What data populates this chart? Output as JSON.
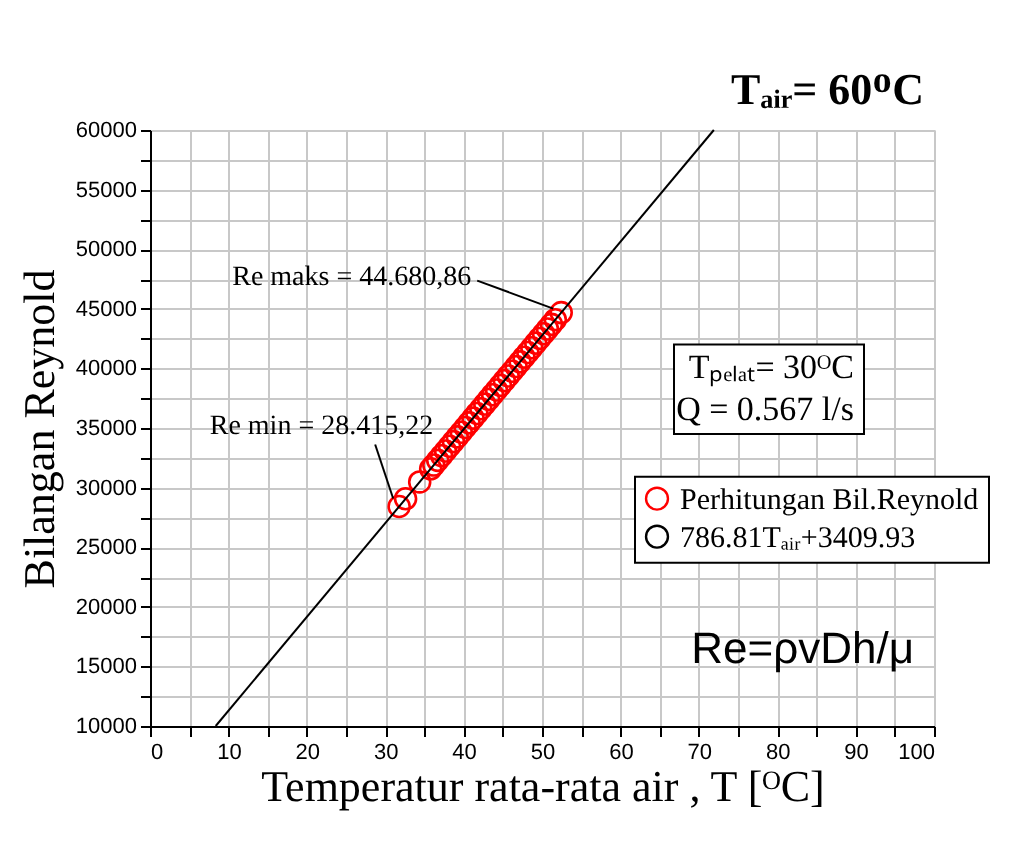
{
  "chart_data": {
    "type": "scatter",
    "xlabel": "Temperatur rata-rata air , T [ᴼC]",
    "ylabel": "Bilangan Reynold",
    "xlim": [
      0,
      100
    ],
    "ylim": [
      10000,
      60000
    ],
    "xticks": [
      0,
      {
        "value": 5,
        "label": null
      },
      10,
      {
        "value": 15,
        "label": null
      },
      20,
      {
        "value": 25,
        "label": null
      },
      30,
      {
        "value": 35,
        "label": null
      },
      40,
      {
        "value": 45,
        "label": null
      },
      50,
      {
        "value": 55,
        "label": null
      },
      60,
      {
        "value": 65,
        "label": null
      },
      70,
      {
        "value": 75,
        "label": null
      },
      80,
      {
        "value": 85,
        "label": null
      },
      90,
      {
        "value": 95,
        "label": null
      },
      100
    ],
    "yticks": [
      10000,
      {
        "value": 12500,
        "label": null
      },
      15000,
      {
        "value": 17500,
        "label": null
      },
      20000,
      {
        "value": 22500,
        "label": null
      },
      25000,
      {
        "value": 27500,
        "label": null
      },
      30000,
      {
        "value": 32500,
        "label": null
      },
      35000,
      {
        "value": 37500,
        "label": null
      },
      40000,
      {
        "value": 42500,
        "label": null
      },
      45000,
      {
        "value": 47500,
        "label": null
      },
      50000,
      {
        "value": 52500,
        "label": null
      },
      55000,
      {
        "value": 57500,
        "label": null
      },
      60000
    ],
    "grid": true,
    "legend": "right",
    "series": [
      {
        "name": "Perhitungan Bil.Reynold",
        "marker": "circle",
        "color": "#ff0000",
        "x": [
          31.78,
          32.6,
          34.4,
          35.8,
          36.2,
          36.7,
          37.2,
          37.7,
          38.2,
          38.7,
          39.2,
          39.7,
          40.2,
          40.7,
          41.2,
          41.7,
          42.2,
          42.7,
          43.2,
          43.7,
          44.2,
          44.7,
          45.2,
          45.7,
          46.2,
          46.7,
          47.2,
          47.7,
          48.2,
          48.7,
          49.2,
          49.7,
          50.2,
          50.7,
          51.2,
          51.7,
          52.45
        ],
        "values": [
          28415.22,
          29060,
          30476,
          31578,
          31892,
          32286,
          32679,
          33073,
          33466,
          33860,
          34253,
          34646,
          35040,
          35433,
          35827,
          36220,
          36613,
          37007,
          37400,
          37794,
          38187,
          38580,
          38974,
          39367,
          39761,
          40154,
          40548,
          40941,
          41334,
          41728,
          42121,
          42515,
          42908,
          43302,
          43695,
          44088,
          44680.86
        ]
      },
      {
        "name": "786.81Tₐᵢᵣ+3409.93",
        "type": "line",
        "marker": "none",
        "color": "#000000",
        "line_style": "solid",
        "x": [
          8.38,
          71.92
        ],
        "values": [
          10000,
          60000
        ]
      }
    ],
    "annotations": [
      "Tₐᵢᵣ= 60ᴼC",
      {
        "text": "Re maks = 44.680,86",
        "x": 52.45,
        "y": 44680.86
      },
      {
        "text": "Re min = 28.415,22",
        "x": 31.78,
        "y": 28415.22
      },
      "Tₚₑₗₐₜ= 30ᴼC",
      "Q = 0.567 l/s",
      "Re=ρvDh/μ"
    ]
  }
}
